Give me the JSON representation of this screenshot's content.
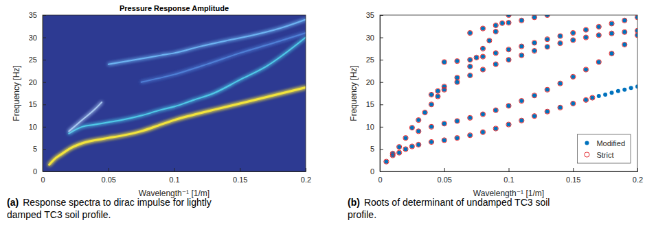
{
  "chart_data": [
    {
      "type": "contour",
      "title": "Pressure Response Amplitude",
      "x_label": "Wavelength⁻¹ [1/m]",
      "y_label": "Frequency [Hz]",
      "caption_label": "(a)",
      "caption": "Response spectra to dirac impulse for lightly damped TC3 soil profile.",
      "xlim": [
        0,
        0.2
      ],
      "ylim": [
        0,
        35
      ],
      "xticks": [
        0,
        0.05,
        0.1,
        0.15,
        0.2
      ],
      "yticks": [
        0,
        5,
        10,
        15,
        20,
        25,
        30,
        35
      ],
      "series": [
        {
          "color": "#f2e33c",
          "x": [
            0.005,
            0.01,
            0.015,
            0.02,
            0.03,
            0.04,
            0.05,
            0.06,
            0.075,
            0.09,
            0.1,
            0.115,
            0.13,
            0.15,
            0.175,
            0.2
          ],
          "values": [
            1.5,
            3,
            4,
            5,
            6.3,
            7,
            7.5,
            8,
            9,
            10.5,
            11.5,
            12.7,
            13.8,
            15.2,
            17,
            18.8
          ]
        },
        {
          "color": "#4fc9e8",
          "x": [
            0.02,
            0.03,
            0.04,
            0.05,
            0.06,
            0.075,
            0.09,
            0.1,
            0.115,
            0.13,
            0.15,
            0.17,
            0.2
          ],
          "values": [
            8.5,
            10,
            10.5,
            11,
            11.5,
            12.5,
            13.8,
            14.5,
            16,
            17.5,
            20.5,
            23.5,
            30
          ]
        },
        {
          "color": "#6db3f2",
          "x": [
            0.05,
            0.07,
            0.09,
            0.1,
            0.12,
            0.14,
            0.16,
            0.18,
            0.2
          ],
          "values": [
            24,
            25,
            26,
            26.5,
            28,
            29.3,
            30.5,
            32,
            34
          ]
        },
        {
          "color": "#4f7fd6",
          "x": [
            0.075,
            0.1,
            0.125,
            0.15,
            0.175,
            0.2
          ],
          "values": [
            20,
            21.7,
            24,
            26.5,
            28.7,
            31
          ]
        },
        {
          "color": "#a9c8f0",
          "x": [
            0.02,
            0.03,
            0.04,
            0.045
          ],
          "values": [
            9,
            11.5,
            14,
            15.5
          ]
        }
      ]
    },
    {
      "type": "scatter",
      "x_label": "Wavelength⁻¹ [1/m]",
      "y_label": "Frequency [Hz]",
      "caption_label": "(b)",
      "caption": "Roots of determinant of undamped TC3 soil profile.",
      "xlim": [
        0,
        0.2
      ],
      "ylim": [
        0,
        35
      ],
      "xticks": [
        0,
        0.05,
        0.1,
        0.15,
        0.2
      ],
      "yticks": [
        0,
        5,
        10,
        15,
        20,
        25,
        30,
        35
      ],
      "legend": "lower right",
      "series": [
        {
          "name": "Modified",
          "color": "#0072bd",
          "marker": "filled-circle",
          "x": [
            0.005,
            0.01,
            0.015,
            0.02,
            0.025,
            0.03,
            0.04,
            0.05,
            0.06,
            0.07,
            0.08,
            0.09,
            0.1,
            0.11,
            0.12,
            0.13,
            0.14,
            0.15,
            0.16,
            0.165,
            0.01,
            0.015,
            0.02,
            0.03,
            0.04,
            0.05,
            0.06,
            0.07,
            0.08,
            0.09,
            0.1,
            0.11,
            0.12,
            0.13,
            0.14,
            0.15,
            0.16,
            0.17,
            0.18,
            0.19,
            0.2,
            0.025,
            0.03,
            0.035,
            0.04,
            0.045,
            0.05,
            0.06,
            0.07,
            0.08,
            0.09,
            0.1,
            0.11,
            0.12,
            0.13,
            0.14,
            0.15,
            0.16,
            0.17,
            0.18,
            0.19,
            0.2,
            0.04,
            0.045,
            0.05,
            0.06,
            0.07,
            0.075,
            0.08,
            0.085,
            0.09,
            0.095,
            0.1,
            0.05,
            0.06,
            0.07,
            0.08,
            0.09,
            0.1,
            0.11,
            0.12,
            0.13,
            0.14,
            0.15,
            0.16,
            0.17,
            0.18,
            0.19,
            0.2,
            0.07,
            0.08,
            0.09,
            0.1,
            0.11,
            0.12,
            0.13,
            0.17,
            0.175,
            0.18,
            0.185,
            0.19,
            0.195,
            0.2
          ],
          "values": [
            2.2,
            3.6,
            4.2,
            5,
            5.6,
            6,
            6.6,
            7,
            7.5,
            8.1,
            8.8,
            9.6,
            10.5,
            11.4,
            12.4,
            13.4,
            14.3,
            15.2,
            16,
            16.5,
            4,
            5.5,
            7.5,
            9,
            10,
            10.7,
            11.3,
            12,
            12.8,
            13.7,
            14.7,
            15.8,
            17,
            18.3,
            19.7,
            21.2,
            22.8,
            24.5,
            26.4,
            28.4,
            30.5,
            9.8,
            11.5,
            13.2,
            15,
            16.8,
            18.3,
            20,
            21.5,
            22.8,
            24,
            25,
            26,
            27,
            27.9,
            28.7,
            29.4,
            30,
            30.5,
            30.9,
            31.2,
            31.5,
            17.2,
            18,
            19,
            21,
            23.5,
            25.5,
            27.5,
            29.3,
            31.3,
            33.2,
            35,
            24.5,
            24.7,
            25,
            25.7,
            26.5,
            27.3,
            28,
            28.8,
            29.6,
            30.3,
            31,
            31.7,
            32.4,
            33.1,
            33.8,
            34.5,
            31,
            32,
            32.7,
            33.3,
            33.8,
            34.5,
            35,
            16.9,
            17.2,
            17.6,
            18,
            18.3,
            18.7,
            19
          ]
        },
        {
          "name": "Strict",
          "color": "#e3262b",
          "marker": "open-circle",
          "x": [
            0.005,
            0.01,
            0.015,
            0.02,
            0.025,
            0.03,
            0.04,
            0.05,
            0.06,
            0.07,
            0.08,
            0.09,
            0.1,
            0.11,
            0.12,
            0.13,
            0.14,
            0.15,
            0.16,
            0.165,
            0.01,
            0.015,
            0.02,
            0.03,
            0.04,
            0.05,
            0.06,
            0.07,
            0.08,
            0.09,
            0.1,
            0.11,
            0.12,
            0.13,
            0.14,
            0.15,
            0.16,
            0.17,
            0.18,
            0.19,
            0.2,
            0.025,
            0.03,
            0.035,
            0.04,
            0.045,
            0.05,
            0.06,
            0.07,
            0.08,
            0.09,
            0.1,
            0.11,
            0.12,
            0.13,
            0.14,
            0.15,
            0.16,
            0.17,
            0.18,
            0.19,
            0.2,
            0.04,
            0.045,
            0.05,
            0.06,
            0.07,
            0.075,
            0.08,
            0.085,
            0.09,
            0.095,
            0.1,
            0.05,
            0.06,
            0.07,
            0.08,
            0.09,
            0.1,
            0.11,
            0.12,
            0.13,
            0.14,
            0.15,
            0.16,
            0.17,
            0.18,
            0.19,
            0.2,
            0.07,
            0.08,
            0.09,
            0.1,
            0.11,
            0.12,
            0.13
          ],
          "values": [
            2.2,
            3.6,
            4.2,
            5,
            5.6,
            6,
            6.6,
            7,
            7.5,
            8.1,
            8.8,
            9.6,
            10.5,
            11.4,
            12.4,
            13.4,
            14.3,
            15.2,
            16,
            16.5,
            4,
            5.5,
            7.5,
            9,
            10,
            10.7,
            11.3,
            12,
            12.8,
            13.7,
            14.7,
            15.8,
            17,
            18.3,
            19.7,
            21.2,
            22.8,
            24.5,
            26.4,
            28.4,
            30.5,
            9.8,
            11.5,
            13.2,
            15,
            16.8,
            18.3,
            20,
            21.5,
            22.8,
            24,
            25,
            26,
            27,
            27.9,
            28.7,
            29.4,
            30,
            30.5,
            30.9,
            31.2,
            31.5,
            17.2,
            18,
            19,
            21,
            23.5,
            25.5,
            27.5,
            29.3,
            31.3,
            33.2,
            35,
            24.5,
            24.7,
            25,
            25.7,
            26.5,
            27.3,
            28,
            28.8,
            29.6,
            30.3,
            31,
            31.7,
            32.4,
            33.1,
            33.8,
            34.5,
            31,
            32,
            32.7,
            33.3,
            33.8,
            34.5,
            35
          ]
        }
      ]
    }
  ]
}
